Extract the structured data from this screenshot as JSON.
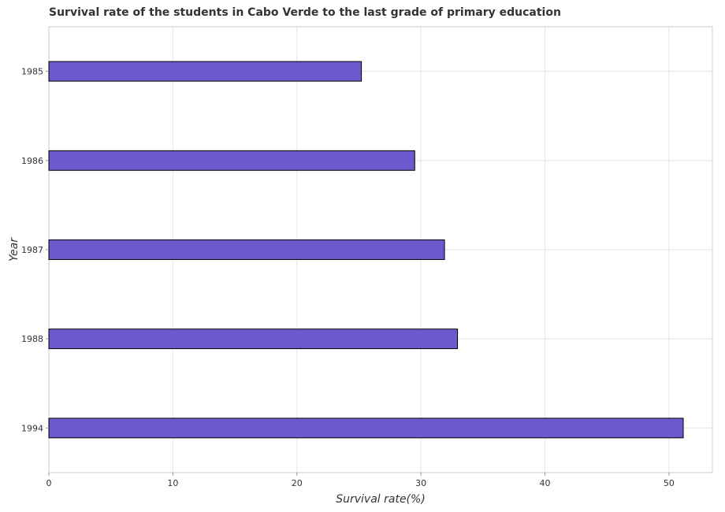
{
  "chart_data": {
    "type": "bar",
    "orientation": "horizontal",
    "title": "Survival rate of the students in Cabo Verde to the last grade of primary education",
    "xlabel": "Survival rate(%)",
    "ylabel": "Year",
    "categories": [
      "1985",
      "1986",
      "1987",
      "1988",
      "1994"
    ],
    "values": [
      25.2,
      29.5,
      31.9,
      32.95,
      51.15
    ],
    "xlim": [
      0,
      53.5
    ],
    "xticks": [
      0,
      10,
      20,
      30,
      40,
      50
    ],
    "xtick_labels": [
      "0",
      "10",
      "20",
      "30",
      "40",
      "50"
    ],
    "grid": true,
    "bar_color": "#6a5acd",
    "bar_edge_color": "#000000"
  }
}
